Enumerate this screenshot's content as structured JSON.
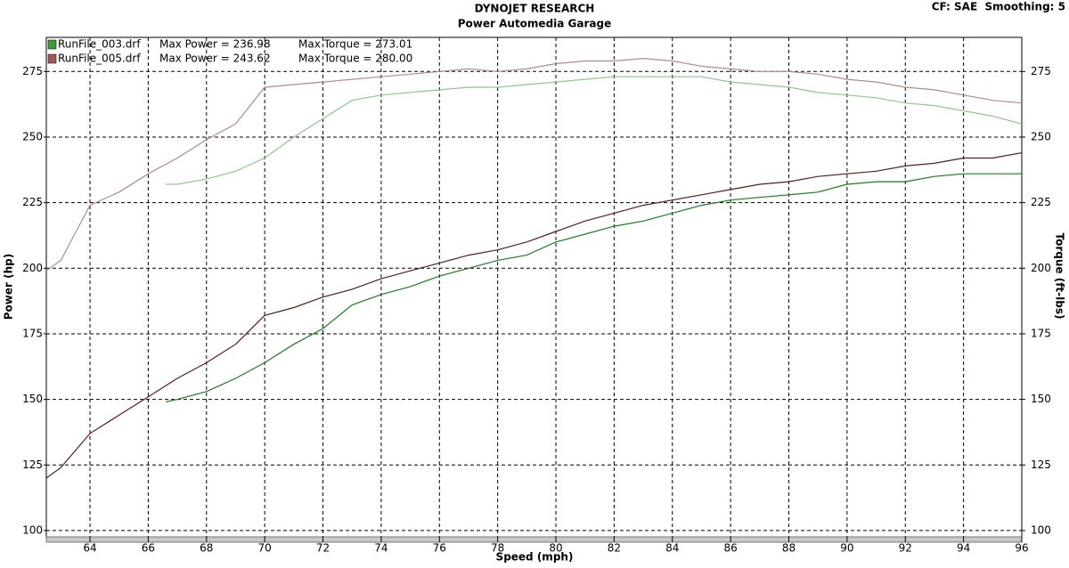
{
  "chart_data": {
    "type": "line",
    "title": "DYNOJET RESEARCH",
    "subtitle": "Power Automedia Garage",
    "settings_text": "CF: SAE  Smoothing: 5",
    "xlabel": "Speed (mph)",
    "ylabel": "Power (hp)",
    "y2label": "Torque (ft-lbs)",
    "xlim": [
      62.5,
      96
    ],
    "xticks": [
      64,
      66,
      68,
      70,
      72,
      74,
      76,
      78,
      80,
      82,
      84,
      86,
      88,
      90,
      92,
      94,
      96
    ],
    "ylim": [
      97.6,
      288
    ],
    "yticks": [
      100,
      125,
      150,
      175,
      200,
      225,
      250,
      275
    ],
    "y2lim": [
      97.6,
      288
    ],
    "y2ticks": [
      100,
      125,
      150,
      175,
      200,
      225,
      250,
      275
    ],
    "grid": true,
    "series": [
      {
        "name": "RunFile_003.drf",
        "legend_color": "#3c9c3c",
        "power_label": "Max Power = 236.98",
        "torque_label": "Max Torque = 273.01",
        "power_color": "#1f7a1f",
        "torque_color": "#8cc88c",
        "x": [
          66.6,
          67,
          68,
          69,
          70,
          71,
          72,
          73,
          74,
          75,
          76,
          77,
          78,
          79,
          80,
          81,
          82,
          83,
          84,
          85,
          86,
          87,
          88,
          89,
          90,
          91,
          92,
          93,
          94,
          95,
          96
        ],
        "power": [
          149,
          150,
          153,
          158,
          164,
          171,
          177,
          186,
          190,
          193,
          197,
          200,
          203,
          205,
          210,
          213,
          216,
          218,
          221,
          224,
          226,
          227,
          228,
          229,
          232,
          233,
          233,
          235,
          236,
          236,
          236
        ],
        "torque": [
          232,
          232,
          234,
          237,
          242,
          250,
          257,
          264,
          266,
          267,
          268,
          269,
          269,
          270,
          271,
          272,
          273,
          273,
          273,
          273,
          271,
          270,
          269,
          267,
          266,
          265,
          263,
          262,
          260,
          258,
          255
        ]
      },
      {
        "name": "RunFile_005.drf",
        "legend_color": "#a05a5a",
        "power_label": "Max Power = 243.62",
        "torque_label": "Max Torque = 280.00",
        "power_color": "#5a1c1c",
        "torque_color": "#b58888",
        "x": [
          62.5,
          63,
          64,
          65,
          66,
          67,
          68,
          69,
          70,
          71,
          72,
          73,
          74,
          75,
          76,
          77,
          78,
          79,
          80,
          81,
          82,
          83,
          84,
          85,
          86,
          87,
          88,
          89,
          90,
          91,
          92,
          93,
          94,
          95,
          96
        ],
        "power": [
          120,
          124,
          137,
          144,
          151,
          158,
          164,
          171,
          182,
          185,
          189,
          192,
          196,
          199,
          202,
          205,
          207,
          210,
          214,
          218,
          221,
          224,
          226,
          228,
          230,
          232,
          233,
          235,
          236,
          237,
          239,
          240,
          242,
          242,
          244
        ],
        "torque": [
          199,
          203,
          224,
          229,
          236,
          242,
          249,
          255,
          269,
          270,
          271,
          272,
          273,
          274,
          275,
          276,
          275,
          276,
          278,
          279,
          279,
          280,
          279,
          277,
          276,
          275,
          275,
          274,
          272,
          271,
          269,
          268,
          266,
          264,
          263
        ]
      }
    ]
  }
}
